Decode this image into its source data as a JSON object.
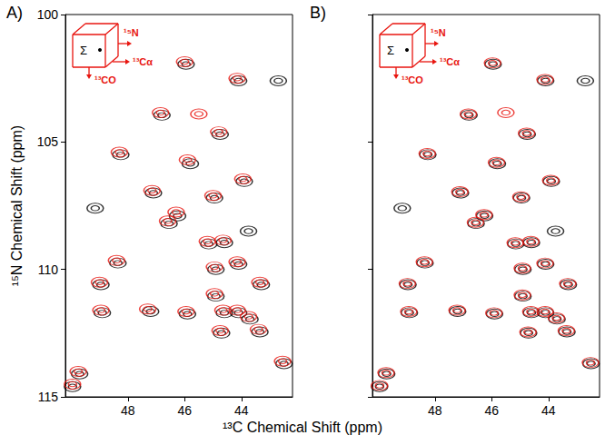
{
  "chart_data": [
    {
      "type": "scatter",
      "title": "A)",
      "xlabel": "¹³C Chemical Shift (ppm)",
      "ylabel": "¹⁵N Chemical Shift (ppm)",
      "annotations": [
        "¹⁵N",
        "¹³Cα",
        "¹³CO",
        "Σ"
      ],
      "xlim": [
        50.2,
        42.2
      ],
      "xticks": [
        48,
        46,
        44
      ],
      "ylim": [
        115,
        100
      ],
      "yticks": [
        100,
        105,
        110,
        115
      ],
      "grid": false,
      "marker": "contour",
      "series": [
        {
          "color": "#000000",
          "x": [
            45.95,
            44.1,
            42.7,
            46.8,
            44.75,
            48.25,
            45.8,
            43.9,
            47.1,
            44.95,
            49.15,
            46.25,
            46.55,
            43.75,
            44.6,
            48.35,
            45.15,
            48.95,
            44.9,
            44.1,
            43.3,
            48.9,
            47.2,
            45.9,
            44.9,
            44.6,
            44.1,
            43.7,
            44.7,
            43.35,
            42.5,
            49.95,
            49.7
          ],
          "y": [
            101.95,
            102.6,
            102.6,
            103.95,
            104.7,
            105.5,
            105.85,
            106.55,
            107.0,
            107.2,
            107.6,
            107.9,
            108.2,
            108.5,
            108.95,
            109.75,
            109.0,
            110.6,
            110.0,
            109.8,
            110.6,
            111.7,
            111.65,
            111.75,
            111.05,
            111.7,
            111.7,
            111.95,
            112.5,
            112.45,
            113.7,
            114.6,
            114.1
          ]
        },
        {
          "color": "#e8150f",
          "x": [
            46.0,
            44.15,
            46.85,
            44.8,
            48.3,
            45.9,
            43.95,
            47.15,
            45.0,
            46.3,
            46.6,
            44.65,
            48.4,
            45.2,
            49.0,
            44.95,
            44.15,
            43.35,
            48.95,
            47.3,
            45.95,
            44.95,
            44.65,
            44.15,
            43.75,
            44.75,
            43.4,
            42.55,
            49.95,
            49.75,
            45.5
          ],
          "y": [
            101.85,
            102.5,
            103.85,
            104.6,
            105.4,
            105.7,
            106.45,
            106.9,
            107.1,
            107.75,
            108.1,
            108.85,
            109.65,
            108.9,
            110.5,
            109.9,
            109.7,
            110.5,
            111.6,
            111.55,
            111.65,
            110.95,
            111.6,
            111.6,
            111.85,
            112.4,
            112.35,
            113.6,
            114.5,
            114.0,
            103.9
          ]
        }
      ]
    },
    {
      "type": "scatter",
      "title": "B)",
      "annotations": [
        "¹⁵N",
        "¹³Cα",
        "¹³CO",
        "Σ"
      ],
      "xlim": [
        50.2,
        42.2
      ],
      "xticks": [
        48,
        46,
        44
      ],
      "ylim": [
        115,
        100
      ],
      "yticks": [
        100,
        105,
        110,
        115
      ],
      "grid": false,
      "marker": "contour",
      "tick_labels": "x",
      "series": [
        {
          "color": "#000000",
          "x": [
            45.95,
            44.1,
            42.7,
            46.8,
            44.75,
            48.25,
            45.8,
            43.9,
            47.1,
            44.95,
            49.15,
            46.25,
            46.55,
            43.75,
            44.6,
            48.35,
            45.15,
            48.95,
            44.9,
            44.1,
            43.3,
            48.9,
            47.2,
            45.9,
            44.9,
            44.6,
            44.1,
            43.7,
            44.7,
            43.35,
            42.5,
            49.95,
            49.7
          ],
          "y": [
            101.95,
            102.6,
            102.6,
            103.95,
            104.7,
            105.5,
            105.85,
            106.55,
            107.0,
            107.2,
            107.6,
            107.9,
            108.2,
            108.5,
            108.95,
            109.75,
            109.0,
            110.6,
            110.0,
            109.8,
            110.6,
            111.7,
            111.65,
            111.75,
            111.05,
            111.7,
            111.7,
            111.95,
            112.5,
            112.45,
            113.7,
            114.6,
            114.1
          ]
        },
        {
          "color": "#e8150f",
          "x": [
            45.97,
            44.12,
            46.82,
            44.77,
            48.27,
            45.83,
            43.92,
            47.12,
            44.97,
            46.27,
            46.57,
            44.62,
            48.37,
            45.17,
            48.97,
            44.92,
            44.12,
            43.32,
            48.92,
            47.22,
            45.92,
            44.92,
            44.62,
            44.12,
            43.72,
            44.72,
            43.37,
            42.52,
            49.95,
            49.72,
            45.5
          ],
          "y": [
            101.9,
            102.55,
            103.9,
            104.65,
            105.45,
            105.8,
            106.5,
            106.95,
            107.15,
            107.85,
            108.15,
            108.9,
            109.7,
            108.95,
            110.55,
            109.95,
            109.75,
            110.55,
            111.65,
            111.6,
            111.7,
            111.0,
            111.65,
            111.65,
            111.9,
            112.45,
            112.4,
            113.65,
            114.55,
            114.05,
            103.85
          ]
        }
      ]
    }
  ]
}
